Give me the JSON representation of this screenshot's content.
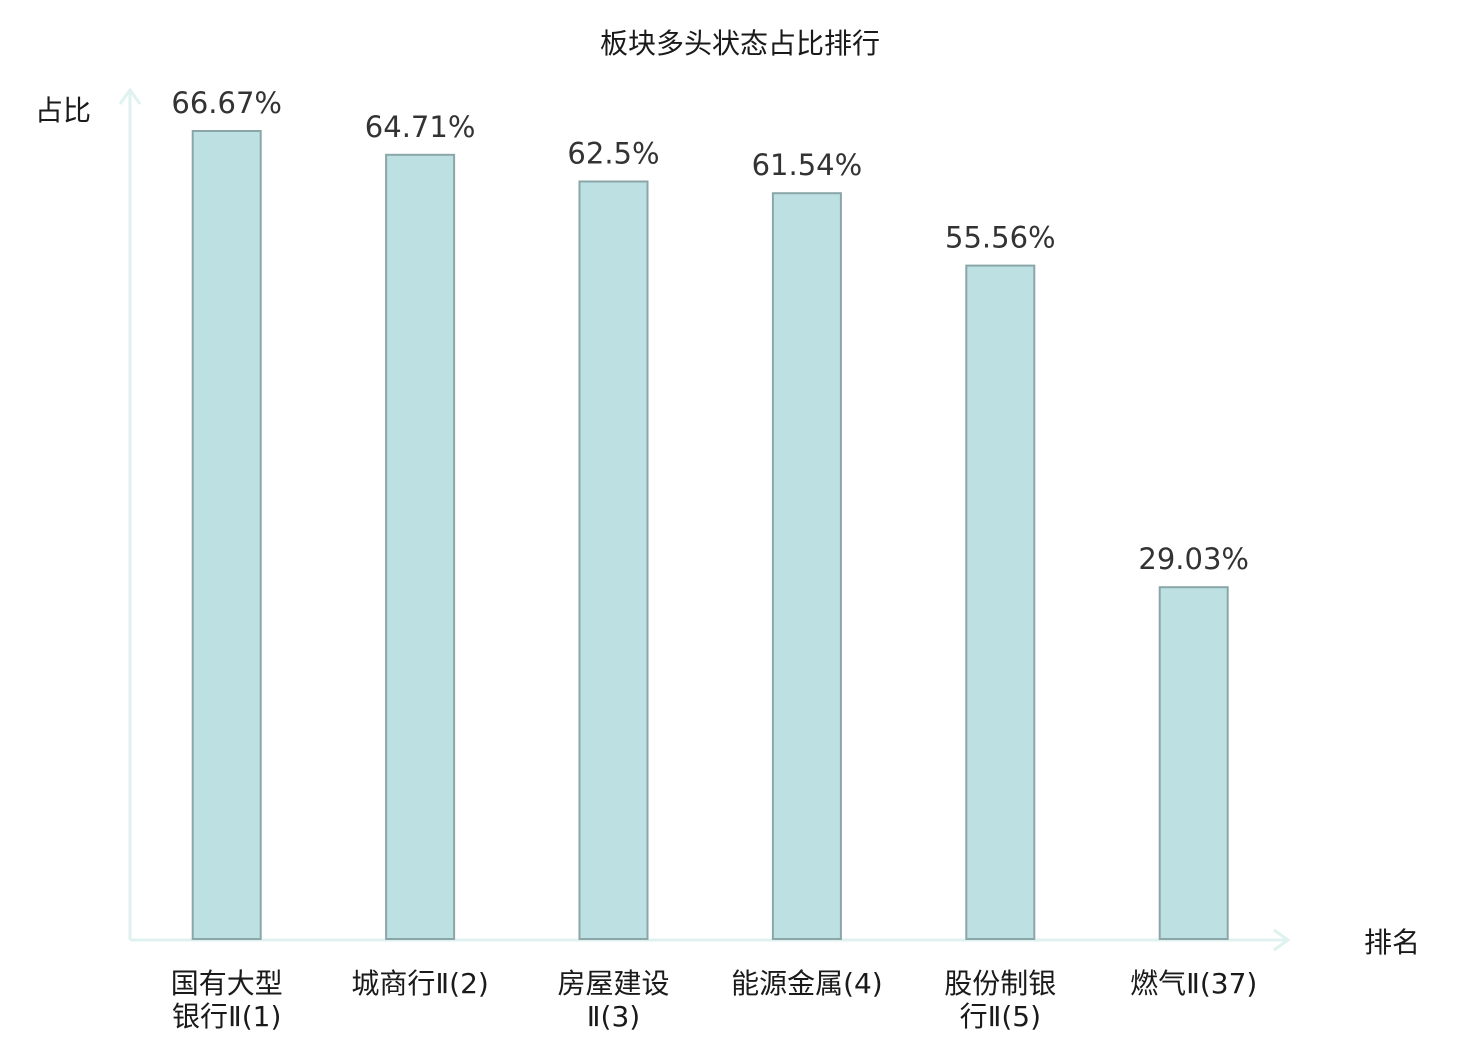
{
  "chart_data": {
    "type": "bar",
    "title": "板块多头状态占比排行",
    "ylabel": "占比",
    "xlabel": "排名",
    "categories": [
      [
        "国有大型",
        "银行Ⅱ(1)"
      ],
      [
        "城商行Ⅱ(2)"
      ],
      [
        "房屋建设",
        "Ⅱ(3)"
      ],
      [
        "能源金属(4)"
      ],
      [
        "股份制银",
        "行Ⅱ(5)"
      ],
      [
        "燃气Ⅱ(37)"
      ]
    ],
    "values": [
      66.67,
      64.71,
      62.5,
      61.54,
      55.56,
      29.03
    ],
    "value_labels": [
      "66.67%",
      "64.71%",
      "62.5%",
      "61.54%",
      "55.56%",
      "29.03%"
    ],
    "highlight_category_index": 5,
    "ylim": [
      0,
      70
    ],
    "grid": false,
    "colors": {
      "bar_fill": "#bde0e3",
      "bar_stroke": "#8aa6a8",
      "axis": "#e0f2ef",
      "highlight_text": "#e0201b",
      "text": "#1a1a1a",
      "value_text": "#333333"
    }
  }
}
